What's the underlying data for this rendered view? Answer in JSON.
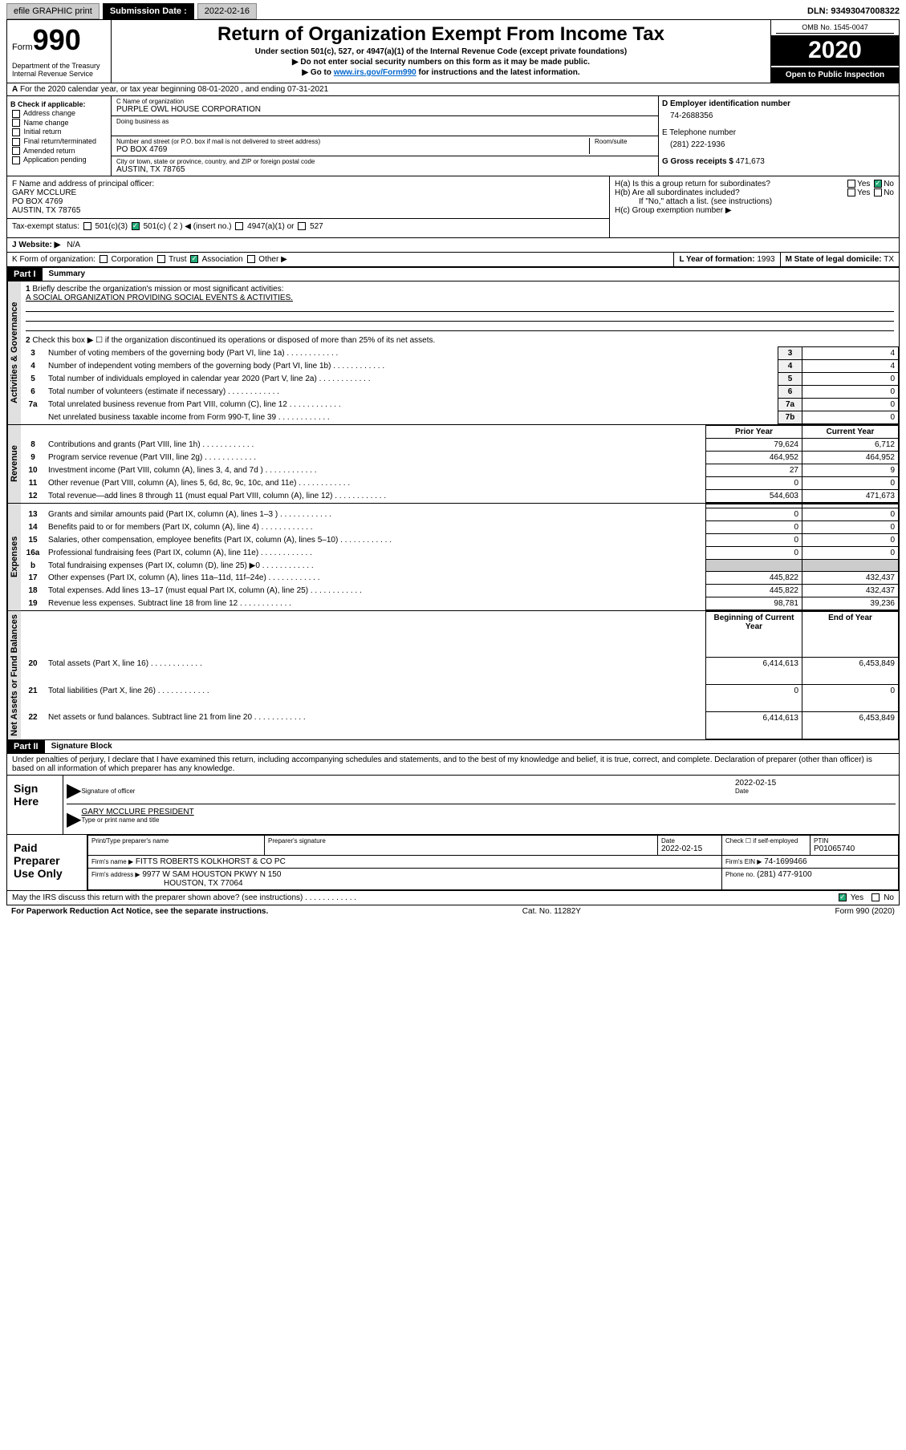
{
  "topbar": {
    "efile": "efile GRAPHIC print",
    "subdate_label": "Submission Date :",
    "subdate": "2022-02-16",
    "dln": "DLN: 93493047008322"
  },
  "header": {
    "form_prefix": "Form",
    "form_num": "990",
    "dept": "Department of the Treasury\nInternal Revenue Service",
    "title": "Return of Organization Exempt From Income Tax",
    "subtitle": "Under section 501(c), 527, or 4947(a)(1) of the Internal Revenue Code (except private foundations)",
    "instr1": "▶ Do not enter social security numbers on this form as it may be made public.",
    "instr2_pre": "▶ Go to ",
    "instr2_link": "www.irs.gov/Form990",
    "instr2_post": " for instructions and the latest information.",
    "omb": "OMB No. 1545-0047",
    "year": "2020",
    "open": "Open to Public Inspection"
  },
  "section_a": "For the 2020 calendar year, or tax year beginning 08-01-2020    , and ending 07-31-2021",
  "check_b": {
    "label": "B Check if applicable:",
    "items": [
      "Address change",
      "Name change",
      "Initial return",
      "Final return/terminated",
      "Amended return",
      "Application pending"
    ]
  },
  "org": {
    "name_label": "C Name of organization",
    "name": "PURPLE OWL HOUSE CORPORATION",
    "dba_label": "Doing business as",
    "addr_label": "Number and street (or P.O. box if mail is not delivered to street address)",
    "room_label": "Room/suite",
    "addr": "PO BOX 4769",
    "city_label": "City or town, state or province, country, and ZIP or foreign postal code",
    "city": "AUSTIN, TX  78765"
  },
  "col_d": {
    "ein_label": "D Employer identification number",
    "ein": "74-2688356",
    "phone_label": "E Telephone number",
    "phone": "(281) 222-1936",
    "gross_label": "G Gross receipts $",
    "gross": "471,673"
  },
  "officer": {
    "label": "F  Name and address of principal officer:",
    "name": "GARY MCCLURE",
    "addr1": "PO BOX 4769",
    "addr2": "AUSTIN, TX  78765"
  },
  "h": {
    "a": "H(a)  Is this a group return for subordinates?",
    "b": "H(b)  Are all subordinates included?",
    "attach": "If \"No,\" attach a list. (see instructions)",
    "c": "H(c)  Group exemption number ▶",
    "yes": "Yes",
    "no": "No"
  },
  "tax_status": {
    "label": "Tax-exempt status:",
    "opts": [
      "501(c)(3)",
      "501(c) ( 2 ) ◀ (insert no.)",
      "4947(a)(1) or",
      "527"
    ]
  },
  "website": {
    "label": "J   Website: ▶",
    "val": "N/A"
  },
  "form_org": {
    "label": "K Form of organization:",
    "opts": [
      "Corporation",
      "Trust",
      "Association",
      "Other ▶"
    ]
  },
  "l_year": {
    "label": "L Year of formation:",
    "val": "1993"
  },
  "m_state": {
    "label": "M State of legal domicile:",
    "val": "TX"
  },
  "part1": {
    "hdr": "Part I",
    "title": "Summary",
    "q1": "Briefly describe the organization's mission or most significant activities:",
    "q1_ans": "A SOCIAL ORGANIZATION PROVIDING SOCIAL EVENTS & ACTIVITIES.",
    "q2": "Check this box ▶ ☐  if the organization discontinued its operations or disposed of more than 25% of its net assets.",
    "rows_gov": [
      {
        "n": "3",
        "t": "Number of voting members of the governing body (Part VI, line 1a)",
        "l": "3",
        "v": "4"
      },
      {
        "n": "4",
        "t": "Number of independent voting members of the governing body (Part VI, line 1b)",
        "l": "4",
        "v": "4"
      },
      {
        "n": "5",
        "t": "Total number of individuals employed in calendar year 2020 (Part V, line 2a)",
        "l": "5",
        "v": "0"
      },
      {
        "n": "6",
        "t": "Total number of volunteers (estimate if necessary)",
        "l": "6",
        "v": "0"
      },
      {
        "n": "7a",
        "t": "Total unrelated business revenue from Part VIII, column (C), line 12",
        "l": "7a",
        "v": "0"
      },
      {
        "n": "",
        "t": "Net unrelated business taxable income from Form 990-T, line 39",
        "l": "7b",
        "v": "0"
      }
    ],
    "col_hdr1": "Prior Year",
    "col_hdr2": "Current Year",
    "rows_rev": [
      {
        "n": "8",
        "t": "Contributions and grants (Part VIII, line 1h)",
        "p": "79,624",
        "c": "6,712"
      },
      {
        "n": "9",
        "t": "Program service revenue (Part VIII, line 2g)",
        "p": "464,952",
        "c": "464,952"
      },
      {
        "n": "10",
        "t": "Investment income (Part VIII, column (A), lines 3, 4, and 7d )",
        "p": "27",
        "c": "9"
      },
      {
        "n": "11",
        "t": "Other revenue (Part VIII, column (A), lines 5, 6d, 8c, 9c, 10c, and 11e)",
        "p": "0",
        "c": "0"
      },
      {
        "n": "12",
        "t": "Total revenue—add lines 8 through 11 (must equal Part VIII, column (A), line 12)",
        "p": "544,603",
        "c": "471,673"
      }
    ],
    "rows_exp": [
      {
        "n": "13",
        "t": "Grants and similar amounts paid (Part IX, column (A), lines 1–3 )",
        "p": "0",
        "c": "0"
      },
      {
        "n": "14",
        "t": "Benefits paid to or for members (Part IX, column (A), line 4)",
        "p": "0",
        "c": "0"
      },
      {
        "n": "15",
        "t": "Salaries, other compensation, employee benefits (Part IX, column (A), lines 5–10)",
        "p": "0",
        "c": "0"
      },
      {
        "n": "16a",
        "t": "Professional fundraising fees (Part IX, column (A), line 11e)",
        "p": "0",
        "c": "0"
      },
      {
        "n": "b",
        "t": "Total fundraising expenses (Part IX, column (D), line 25) ▶0",
        "p": "",
        "c": ""
      },
      {
        "n": "17",
        "t": "Other expenses (Part IX, column (A), lines 11a–11d, 11f–24e)",
        "p": "445,822",
        "c": "432,437"
      },
      {
        "n": "18",
        "t": "Total expenses. Add lines 13–17 (must equal Part IX, column (A), line 25)",
        "p": "445,822",
        "c": "432,437"
      },
      {
        "n": "19",
        "t": "Revenue less expenses. Subtract line 18 from line 12",
        "p": "98,781",
        "c": "39,236"
      }
    ],
    "col_hdr3": "Beginning of Current Year",
    "col_hdr4": "End of Year",
    "rows_net": [
      {
        "n": "20",
        "t": "Total assets (Part X, line 16)",
        "p": "6,414,613",
        "c": "6,453,849"
      },
      {
        "n": "21",
        "t": "Total liabilities (Part X, line 26)",
        "p": "0",
        "c": "0"
      },
      {
        "n": "22",
        "t": "Net assets or fund balances. Subtract line 21 from line 20",
        "p": "6,414,613",
        "c": "6,453,849"
      }
    ],
    "side_gov": "Activities & Governance",
    "side_rev": "Revenue",
    "side_exp": "Expenses",
    "side_net": "Net Assets or Fund Balances"
  },
  "part2": {
    "hdr": "Part II",
    "title": "Signature Block",
    "perjury": "Under penalties of perjury, I declare that I have examined this return, including accompanying schedules and statements, and to the best of my knowledge and belief, it is true, correct, and complete. Declaration of preparer (other than officer) is based on all information of which preparer has any knowledge."
  },
  "sign": {
    "here": "Sign Here",
    "sig_label": "Signature of officer",
    "date_label": "Date",
    "date": "2022-02-15",
    "name": "GARY MCCLURE PRESIDENT",
    "name_label": "Type or print name and title"
  },
  "prep": {
    "title": "Paid Preparer Use Only",
    "pname_label": "Print/Type preparer's name",
    "psig_label": "Preparer's signature",
    "pdate_label": "Date",
    "pdate": "2022-02-15",
    "self_label": "Check ☐ if self-employed",
    "ptin_label": "PTIN",
    "ptin": "P01065740",
    "firm_label": "Firm's name    ▶",
    "firm": "FITTS ROBERTS KOLKHORST & CO PC",
    "ein_label": "Firm's EIN ▶",
    "ein": "74-1699466",
    "addr_label": "Firm's address ▶",
    "addr1": "9977 W SAM HOUSTON PKWY N 150",
    "addr2": "HOUSTON, TX  77064",
    "phone_label": "Phone no.",
    "phone": "(281) 477-9100"
  },
  "discuss": {
    "q": "May the IRS discuss this return with the preparer shown above? (see instructions)",
    "yes": "Yes",
    "no": "No"
  },
  "footer": {
    "left": "For Paperwork Reduction Act Notice, see the separate instructions.",
    "mid": "Cat. No. 11282Y",
    "right": "Form 990 (2020)"
  }
}
